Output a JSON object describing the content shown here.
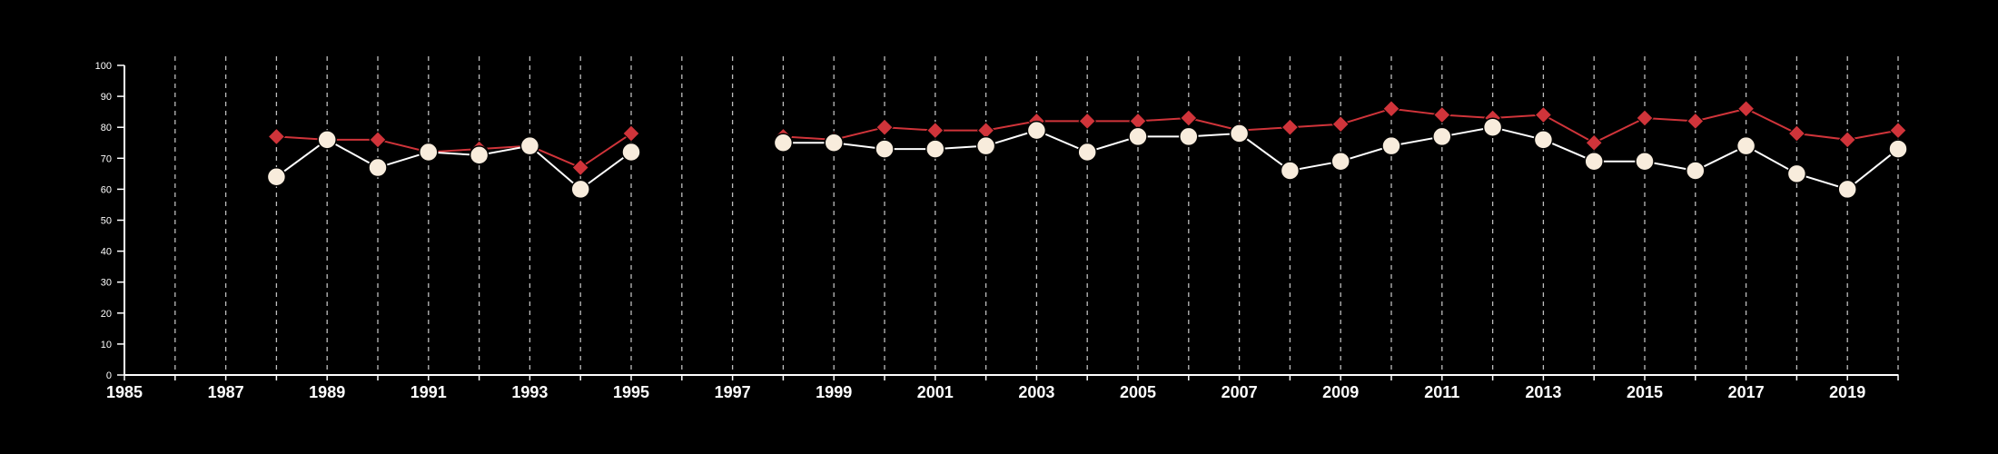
{
  "chart_data": {
    "type": "line",
    "title": "",
    "xlabel": "",
    "ylabel": "",
    "xlim": [
      1985,
      2020
    ],
    "ylim": [
      0,
      100
    ],
    "yticks": [
      0,
      10,
      20,
      30,
      40,
      50,
      60,
      70,
      80,
      90,
      100
    ],
    "xtick_labels": [
      1985,
      1987,
      1989,
      1991,
      1993,
      1995,
      1997,
      1999,
      2001,
      2003,
      2005,
      2007,
      2009,
      2011,
      2013,
      2015,
      2017,
      2019
    ],
    "grid_years": [
      1986,
      1987,
      1988,
      1989,
      1990,
      1991,
      1992,
      1993,
      1994,
      1995,
      1996,
      1997,
      1998,
      1999,
      2000,
      2001,
      2002,
      2003,
      2004,
      2005,
      2006,
      2007,
      2008,
      2009,
      2010,
      2011,
      2012,
      2013,
      2014,
      2015,
      2016,
      2017,
      2018,
      2019,
      2020
    ],
    "background": "#000000",
    "series": [
      {
        "marker": "diamond",
        "color": "#d0343a",
        "segments": [
          [
            [
              1988,
              77
            ],
            [
              1989,
              76
            ],
            [
              1990,
              76
            ],
            [
              1991,
              72
            ],
            [
              1992,
              73
            ],
            [
              1993,
              74
            ],
            [
              1994,
              67
            ],
            [
              1995,
              78
            ]
          ],
          [
            [
              1998,
              77
            ],
            [
              1999,
              76
            ],
            [
              2000,
              80
            ],
            [
              2001,
              79
            ],
            [
              2002,
              79
            ],
            [
              2003,
              82
            ],
            [
              2004,
              82
            ],
            [
              2005,
              82
            ],
            [
              2006,
              83
            ],
            [
              2007,
              79
            ],
            [
              2008,
              80
            ],
            [
              2009,
              81
            ],
            [
              2010,
              86
            ],
            [
              2011,
              84
            ],
            [
              2012,
              83
            ],
            [
              2013,
              84
            ],
            [
              2014,
              75
            ],
            [
              2015,
              83
            ],
            [
              2016,
              82
            ],
            [
              2017,
              86
            ],
            [
              2018,
              78
            ],
            [
              2019,
              76
            ],
            [
              2020,
              79
            ]
          ]
        ]
      },
      {
        "marker": "circle",
        "color": "#f8ecdc",
        "segments": [
          [
            [
              1988,
              64
            ],
            [
              1989,
              76
            ],
            [
              1990,
              67
            ],
            [
              1991,
              72
            ],
            [
              1992,
              71
            ],
            [
              1993,
              74
            ],
            [
              1994,
              60
            ],
            [
              1995,
              72
            ]
          ],
          [
            [
              1998,
              75
            ],
            [
              1999,
              75
            ],
            [
              2000,
              73
            ],
            [
              2001,
              73
            ],
            [
              2002,
              74
            ],
            [
              2003,
              79
            ],
            [
              2004,
              72
            ],
            [
              2005,
              77
            ],
            [
              2006,
              77
            ],
            [
              2007,
              78
            ],
            [
              2008,
              66
            ],
            [
              2009,
              69
            ],
            [
              2010,
              74
            ],
            [
              2011,
              77
            ],
            [
              2012,
              80
            ],
            [
              2013,
              76
            ],
            [
              2014,
              69
            ],
            [
              2015,
              69
            ],
            [
              2016,
              66
            ],
            [
              2017,
              74
            ],
            [
              2018,
              65
            ],
            [
              2019,
              60
            ],
            [
              2020,
              73
            ]
          ]
        ]
      }
    ]
  }
}
